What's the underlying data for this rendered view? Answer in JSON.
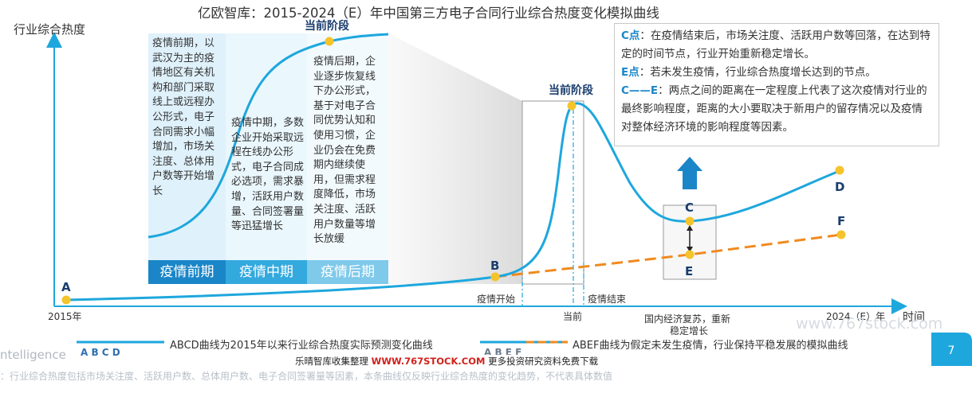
{
  "colors": {
    "actual_curve": "#1ea7dd",
    "scenario_curve": "#f08a1f",
    "point": "#f5c32b",
    "axis": "#1ea7dd",
    "phase_pre": "#1a86c8",
    "phase_mid": "#33a9de",
    "phase_post": "#7fc9ea",
    "highlight": "#1a86c8",
    "arrow_up": "#1a86c8"
  },
  "title": "亿欧智库：2015-2024（E）年中国第三方电子合同行业综合热度变化模拟曲线",
  "chart_data": {
    "type": "line",
    "title": "亿欧智库：2015-2024（E）年中国第三方电子合同行业综合热度变化模拟曲线",
    "ylabel": "行业综合热度",
    "xlabel": "时间",
    "x_ticks": [
      "2015年",
      "疫情开始",
      "当前",
      "疫情结束",
      "国内经济复苏，重新稳定增长",
      "2024（E）年"
    ],
    "grid": false,
    "legend_placement": "bottom",
    "note": "模拟曲线，不代表具体数值",
    "series": [
      {
        "name": "ABCD曲线为2015年以来行业综合热度实际预测变化曲线",
        "style": "solid",
        "points": [
          "A",
          "B",
          "当前",
          "C",
          "D"
        ]
      },
      {
        "name": "ABEF曲线为假定未发生疫情，行业保持平稳发展的模拟曲线",
        "style": "dashed",
        "points": [
          "A",
          "B",
          "E",
          "F"
        ]
      }
    ],
    "point_labels": [
      "A",
      "B",
      "C",
      "D",
      "E",
      "F"
    ],
    "annotations": [
      "当前阶段",
      "当前阶段"
    ]
  },
  "labels": {
    "point_a": "A",
    "point_b": "B",
    "point_c": "C",
    "point_d": "D",
    "point_e": "E",
    "point_f": "F",
    "current_stage_main": "当前阶段",
    "current_stage_zoom": "当前阶段",
    "epidemic_start": "疫情开始",
    "current": "当前",
    "epidemic_end": "疫情结束",
    "recovery": "国内经济复苏，重新",
    "recovery_2": "稳定增长",
    "year_start": "2015年",
    "year_end": "2024（E）年"
  },
  "phases": {
    "pre_label": "疫情前期",
    "mid_label": "疫情中期",
    "post_label": "疫情后期",
    "pre_text": "疫情前期，以武汉为主的疫情地区有关机构和部门采取线上或远程办公形式，电子合同需求小幅增加，市场关注度、总体用户数等开始增长",
    "mid_text": "疫情中期，多数企业开始采取远程在线办公形式，电子合同成必选项，需求暴增，活跃用户数量、合同签署量等迅猛增长",
    "post_text": "疫情后期，企业逐步恢复线下办公形式，基于对电子合同优势认知和使用习惯，企业仍会在免费期内继续使用，但需求程度降低，市场关注度、活跃用户数量等增长放缓"
  },
  "notes": {
    "c_key": "C点",
    "c_text": "：在疫情结束后，市场关注度、活跃用户数等回落，在达到特定的时间节点，行业开始重新稳定增长。",
    "e_key": "E点",
    "e_text": "：若未发生疫情，行业综合热度增长达到的节点。",
    "ce_key": "C——E",
    "ce_text": "：两点之间的距离在一定程度上代表了这次疫情对行业的最终影响程度，距离的大小要取决于新用户的留存情况以及疫情对整体经济环境的影响程度等因素。"
  },
  "legend": {
    "abcd_letters": "A  B  C  D",
    "abcd_text": "ABCD曲线为2015年以来行业综合热度实际预测变化曲线",
    "abef_letters": "A  B  E  F",
    "abef_text": "ABEF曲线为假定未发生疫情，行业保持平稳发展的模拟曲线"
  },
  "footer": {
    "brand": "ntelligence",
    "promo": "乐晴智库收集整理",
    "promo_url": "WWW.767STOCK.COM",
    "promo_more": "更多投资研究资料免费下载",
    "note": "：行业综合热度包括市场关注度、活跃用户数、总体用户数、电子合同签署量等因素，本条曲线仅反映行业综合热度的变化趋势，不代表具体数值",
    "watermark": "www.767stock.com",
    "page_number": "7"
  }
}
